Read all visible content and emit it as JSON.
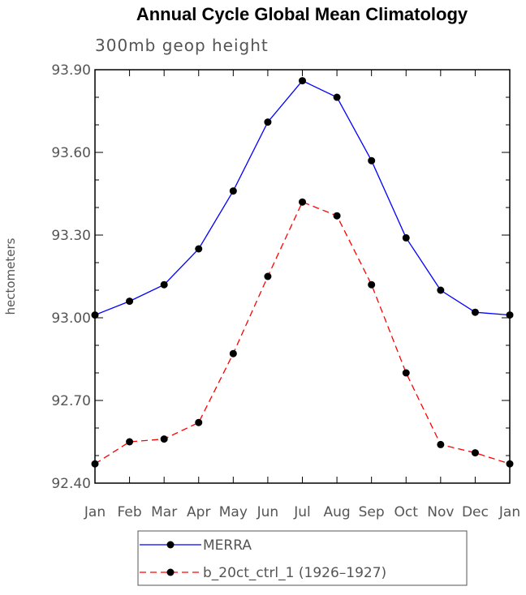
{
  "chart_data": {
    "type": "line",
    "title": "Annual Cycle Global Mean Climatology",
    "subtitle": "300mb geop height",
    "ylabel": "hectometers",
    "xlabel": "",
    "ylim": [
      92.4,
      93.9
    ],
    "yticks": [
      "92.40",
      "92.70",
      "93.00",
      "93.30",
      "93.60",
      "93.90"
    ],
    "categories": [
      "Jan",
      "Feb",
      "Mar",
      "Apr",
      "May",
      "Jun",
      "Jul",
      "Aug",
      "Sep",
      "Oct",
      "Nov",
      "Dec",
      "Jan"
    ],
    "legend_position": "bottom",
    "series": [
      {
        "name": "MERRA",
        "color": "#0000ff",
        "dash": "solid",
        "values": [
          93.01,
          93.06,
          93.12,
          93.25,
          93.46,
          93.71,
          93.86,
          93.8,
          93.57,
          93.29,
          93.1,
          93.02,
          93.01
        ]
      },
      {
        "name": "b_20ct_ctrl_1 (1926–1927)",
        "color": "#ff0000",
        "dash": "dashed",
        "values": [
          92.47,
          92.55,
          92.56,
          92.62,
          92.87,
          93.15,
          93.42,
          93.37,
          93.12,
          92.8,
          92.54,
          92.51,
          92.47
        ]
      }
    ]
  }
}
